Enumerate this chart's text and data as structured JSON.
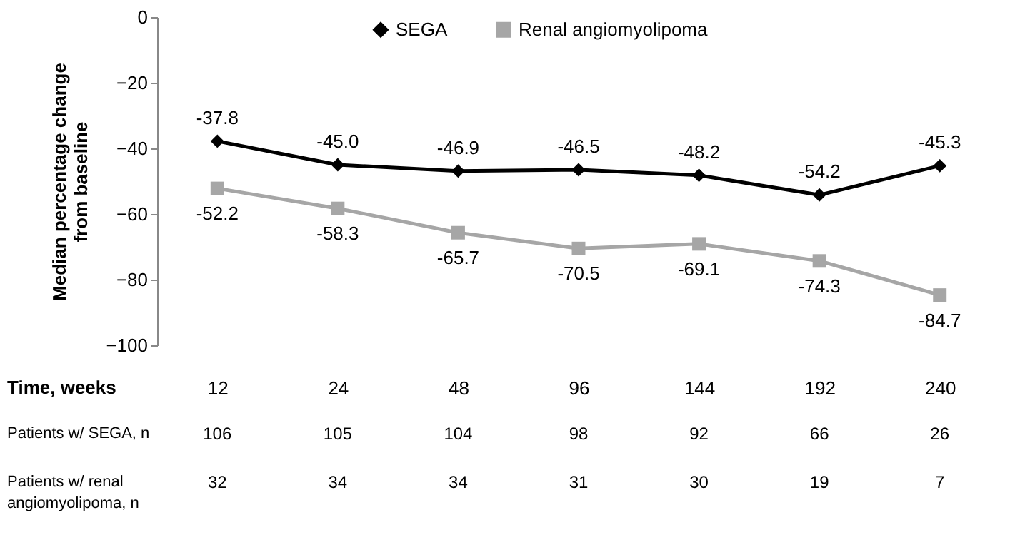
{
  "chart_data": {
    "type": "line",
    "xlabel": "Time, weeks",
    "ylabel": "Median percentage change from baseline",
    "categories": [
      "12",
      "24",
      "48",
      "96",
      "144",
      "192",
      "240"
    ],
    "series": [
      {
        "name": "SEGA",
        "color": "#000000",
        "marker": "diamond",
        "values": [
          -37.8,
          -45.0,
          -46.9,
          -46.5,
          -48.2,
          -54.2,
          -45.3
        ],
        "value_labels": [
          "-37.8",
          "-45.0",
          "-46.9",
          "-46.5",
          "-48.2",
          "-54.2",
          "-45.3"
        ]
      },
      {
        "name": "Renal angiomyolipoma",
        "color": "#a6a6a6",
        "marker": "square",
        "values": [
          -52.2,
          -58.3,
          -65.7,
          -70.5,
          -69.1,
          -74.3,
          -84.7
        ],
        "value_labels": [
          "-52.2",
          "-58.3",
          "-65.7",
          "-70.5",
          "-69.1",
          "-74.3",
          "-84.7"
        ]
      }
    ],
    "ylim": [
      -100,
      0
    ],
    "yticks": [
      -100,
      -80,
      -60,
      -40,
      -20,
      0
    ],
    "grid": false,
    "legend": "top",
    "annotations": [
      "Patients w/ SEGA, n",
      "106",
      "105",
      "104",
      "98",
      "92",
      "66",
      "26",
      "Patients w/ renal angiomyolipoma, n",
      "32",
      "34",
      "34",
      "31",
      "30",
      "19",
      "7"
    ]
  }
}
